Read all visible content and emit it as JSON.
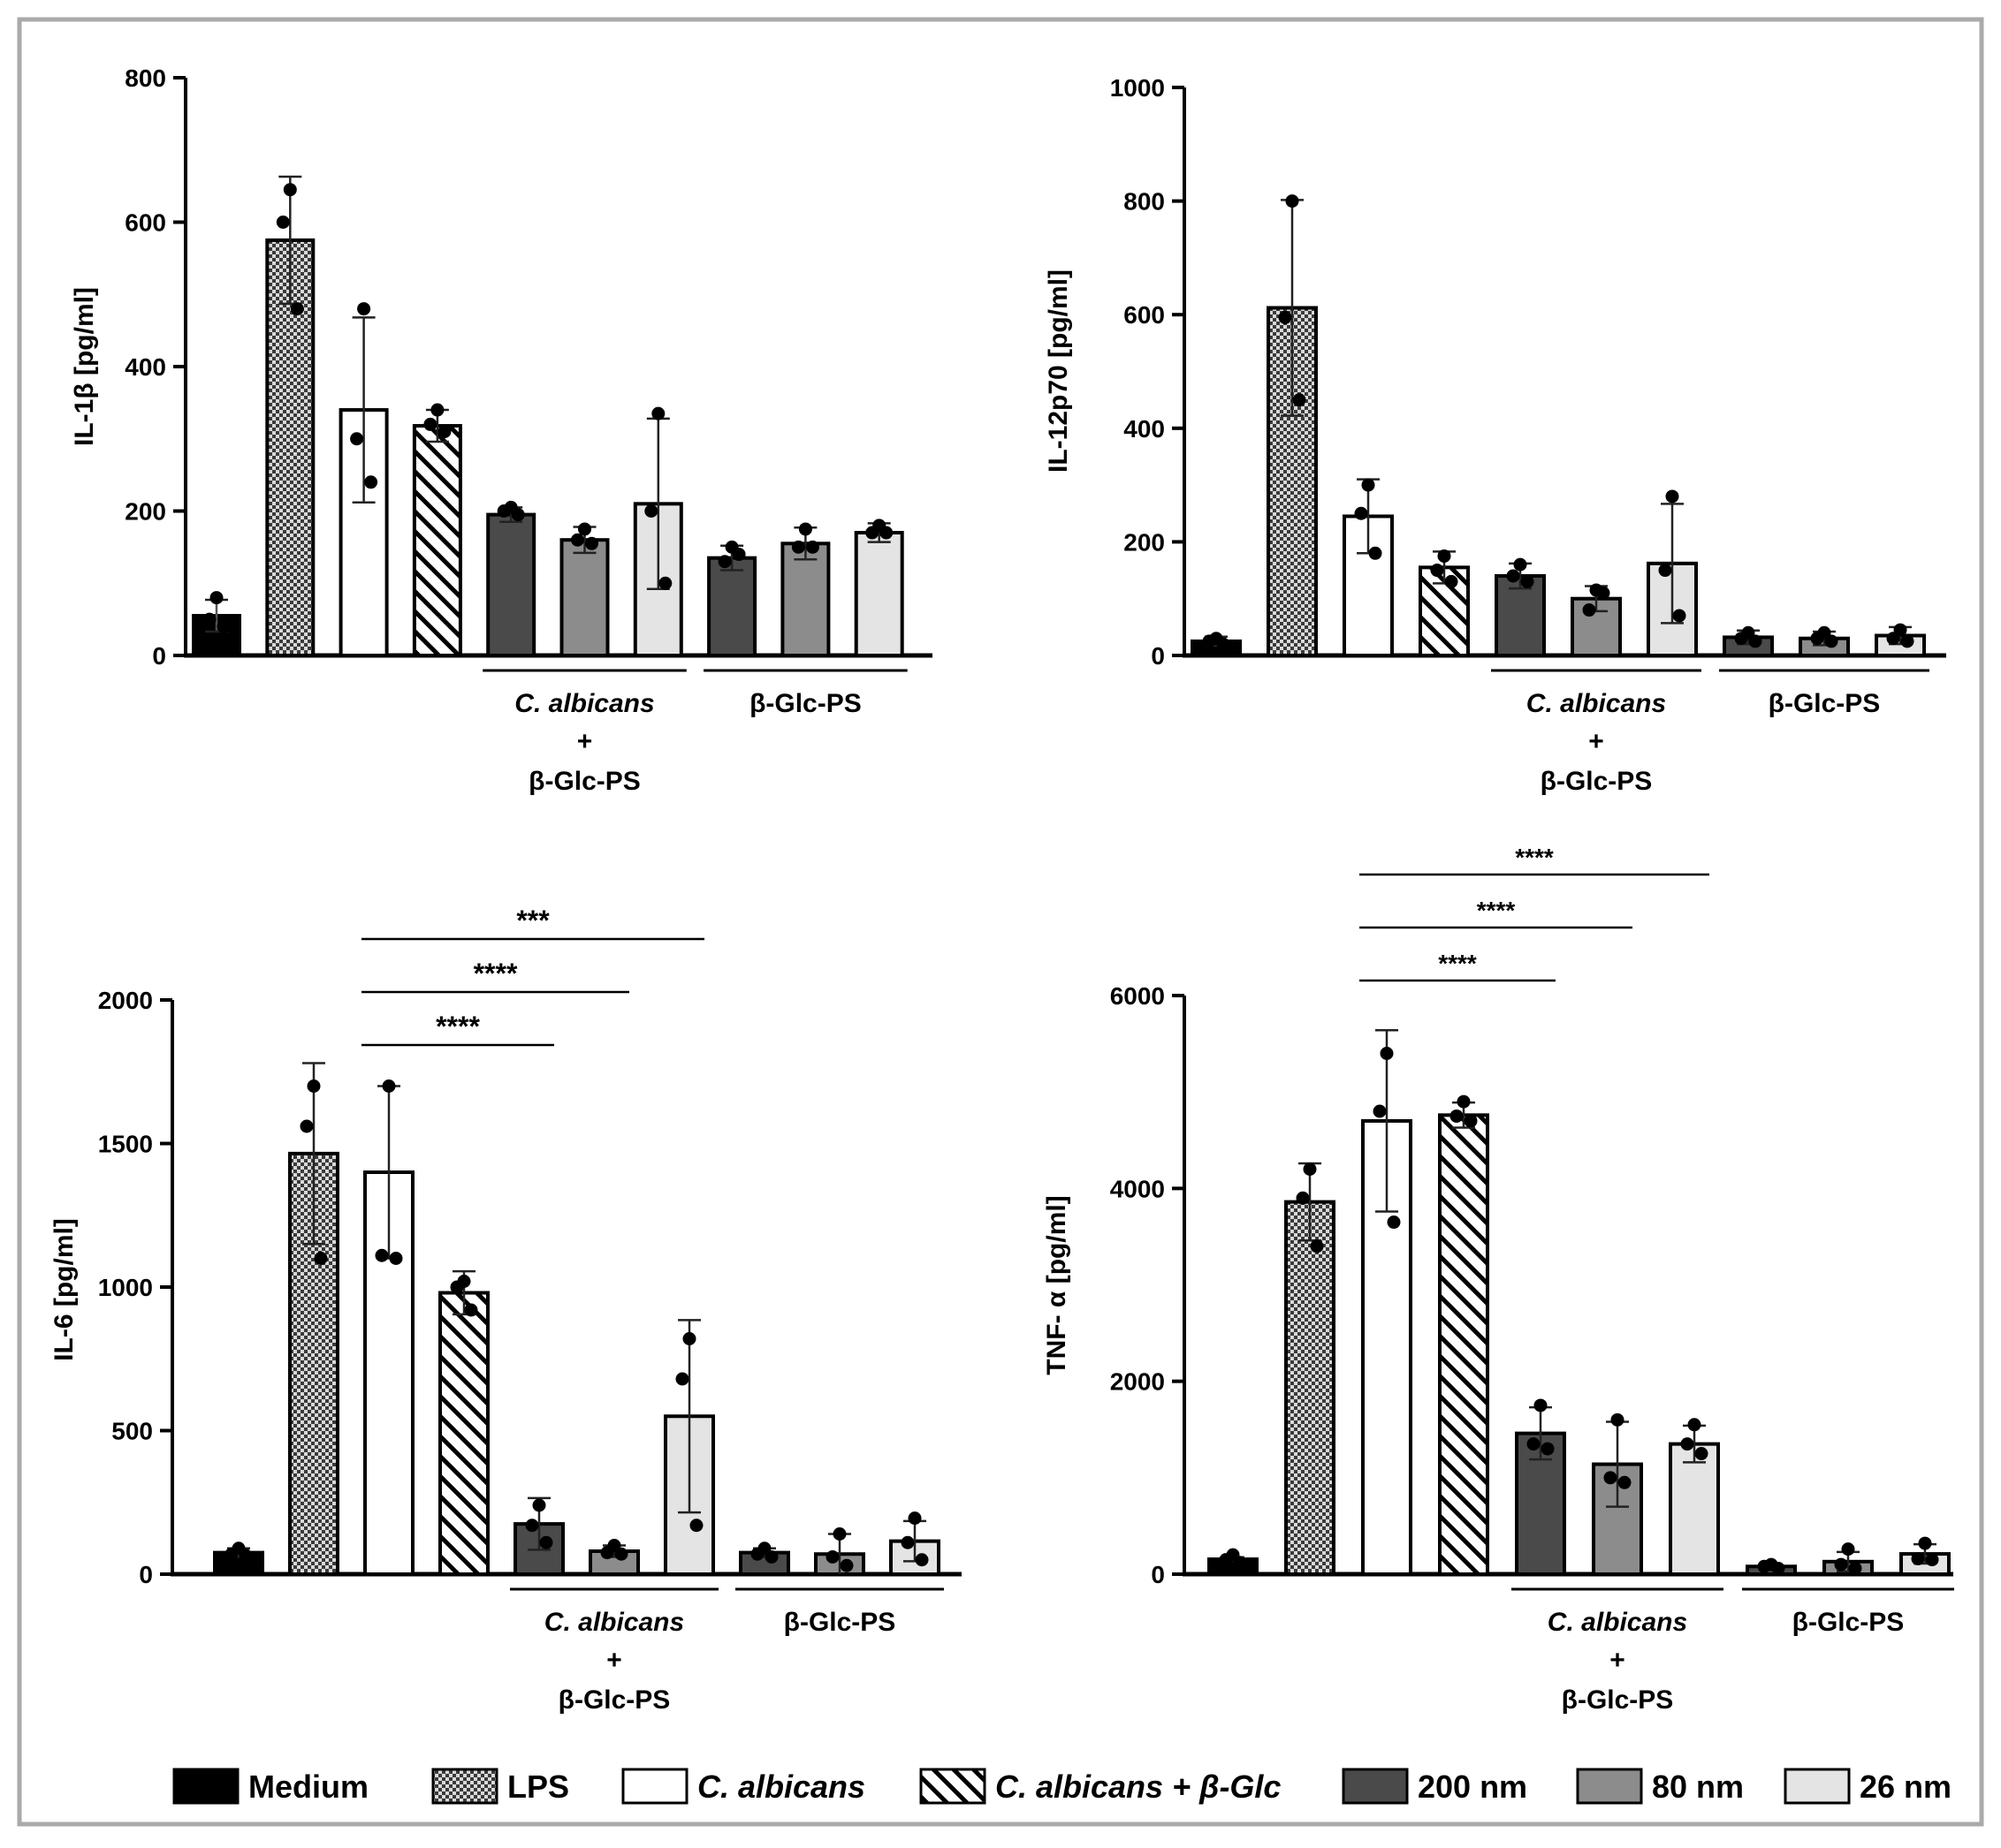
{
  "chart_data": [
    {
      "id": "il1b",
      "type": "bar",
      "ylabel": "IL-1β [pg/ml]",
      "ylim": [
        0,
        800
      ],
      "yticks": [
        0,
        200,
        400,
        600,
        800
      ],
      "categories": [
        "Medium",
        "LPS",
        "C. albicans",
        "C. albicans + β-Glc",
        "C. albicans + β-Glc-PS 200 nm",
        "C. albicans + β-Glc-PS 80 nm",
        "C. albicans + β-Glc-PS 26 nm",
        "β-Glc-PS 200 nm",
        "β-Glc-PS 80 nm",
        "β-Glc-PS 26 nm"
      ],
      "values": [
        55,
        575,
        340,
        318,
        195,
        160,
        210,
        135,
        155,
        170
      ],
      "errors": [
        22,
        88,
        128,
        22,
        10,
        18,
        118,
        17,
        22,
        13
      ],
      "points": [
        [
          80,
          50,
          40
        ],
        [
          645,
          600,
          480
        ],
        [
          480,
          300,
          240
        ],
        [
          340,
          320,
          310
        ],
        [
          205,
          200,
          195
        ],
        [
          175,
          160,
          155
        ],
        [
          335,
          200,
          100
        ],
        [
          150,
          130,
          140
        ],
        [
          175,
          150,
          150
        ],
        [
          180,
          170,
          170
        ]
      ],
      "group_labels": [
        {
          "text": "C. albicans",
          "italic": true
        },
        {
          "text": "+",
          "italic": false
        },
        {
          "text": "β-Glc-PS",
          "italic": false
        },
        {
          "text": "β-Glc-PS",
          "italic": false
        }
      ],
      "significance": []
    },
    {
      "id": "il12",
      "type": "bar",
      "ylabel": "IL-12p70 [pg/ml]",
      "ylim": [
        0,
        1000
      ],
      "yticks": [
        0,
        200,
        400,
        600,
        800,
        1000
      ],
      "categories": [
        "Medium",
        "LPS",
        "C. albicans",
        "C. albicans + β-Glc",
        "C. albicans + β-Glc-PS 200 nm",
        "C. albicans + β-Glc-PS 80 nm",
        "C. albicans + β-Glc-PS 26 nm",
        "β-Glc-PS 200 nm",
        "β-Glc-PS 80 nm",
        "β-Glc-PS 26 nm"
      ],
      "values": [
        25,
        612,
        245,
        155,
        140,
        100,
        162,
        32,
        30,
        35
      ],
      "errors": [
        8,
        190,
        65,
        28,
        22,
        22,
        105,
        12,
        12,
        15
      ],
      "points": [
        [
          30,
          25,
          20
        ],
        [
          800,
          595,
          450
        ],
        [
          300,
          250,
          180
        ],
        [
          175,
          150,
          130
        ],
        [
          160,
          140,
          130
        ],
        [
          115,
          80,
          110
        ],
        [
          280,
          150,
          70
        ],
        [
          40,
          30,
          25
        ],
        [
          40,
          30,
          25
        ],
        [
          45,
          30,
          25
        ]
      ],
      "group_labels": [
        {
          "text": "C. albicans",
          "italic": true
        },
        {
          "text": "+",
          "italic": false
        },
        {
          "text": "β-Glc-PS",
          "italic": false
        },
        {
          "text": "β-Glc-PS",
          "italic": false
        }
      ],
      "significance": []
    },
    {
      "id": "il6",
      "type": "bar",
      "ylabel": "IL-6 [pg/ml]",
      "ylim": [
        0,
        2000
      ],
      "yticks": [
        0,
        500,
        1000,
        1500,
        2000
      ],
      "categories": [
        "Medium",
        "LPS",
        "C. albicans",
        "C. albicans + β-Glc",
        "C. albicans + β-Glc-PS 200 nm",
        "C. albicans + β-Glc-PS 80 nm",
        "C. albicans + β-Glc-PS 26 nm",
        "β-Glc-PS 200 nm",
        "β-Glc-PS 80 nm",
        "β-Glc-PS 26 nm"
      ],
      "values": [
        75,
        1465,
        1400,
        980,
        175,
        80,
        550,
        75,
        70,
        115
      ],
      "errors": [
        15,
        315,
        300,
        75,
        90,
        20,
        335,
        15,
        70,
        70
      ],
      "points": [
        [
          90,
          70,
          65
        ],
        [
          1700,
          1560,
          1100
        ],
        [
          1700,
          1110,
          1100
        ],
        [
          1020,
          1000,
          920
        ],
        [
          240,
          170,
          110
        ],
        [
          100,
          75,
          70
        ],
        [
          820,
          680,
          170
        ],
        [
          90,
          70,
          60
        ],
        [
          140,
          60,
          30
        ],
        [
          195,
          110,
          50
        ]
      ],
      "group_labels": [
        {
          "text": "C. albicans",
          "italic": true
        },
        {
          "text": "+",
          "italic": false
        },
        {
          "text": "β-Glc-PS",
          "italic": false
        },
        {
          "text": "β-Glc-PS",
          "italic": false
        }
      ],
      "significance": [
        {
          "from": 2,
          "to": 4,
          "label": "****"
        },
        {
          "from": 2,
          "to": 5,
          "label": "****"
        },
        {
          "from": 2,
          "to": 6,
          "label": "***"
        }
      ]
    },
    {
      "id": "tnf",
      "type": "bar",
      "ylabel": "TNF- α [pg/ml]",
      "ylim": [
        0,
        6000
      ],
      "yticks": [
        0,
        2000,
        4000,
        6000
      ],
      "categories": [
        "Medium",
        "LPS",
        "C. albicans",
        "C. albicans + β-Glc",
        "C. albicans + β-Glc-PS 200 nm",
        "C. albicans + β-Glc-PS 80 nm",
        "C. albicans + β-Glc-PS 26 nm",
        "β-Glc-PS 200 nm",
        "β-Glc-PS 80 nm",
        "β-Glc-PS 26 nm"
      ],
      "values": [
        155,
        3860,
        4700,
        4760,
        1460,
        1140,
        1350,
        80,
        130,
        210
      ],
      "errors": [
        20,
        400,
        940,
        130,
        270,
        440,
        190,
        20,
        100,
        100
      ],
      "points": [
        [
          200,
          150,
          120
        ],
        [
          4200,
          3900,
          3400
        ],
        [
          5400,
          4800,
          3650
        ],
        [
          4900,
          4750,
          4700
        ],
        [
          1750,
          1350,
          1300
        ],
        [
          1600,
          1000,
          950
        ],
        [
          1550,
          1350,
          1250
        ],
        [
          100,
          80,
          60
        ],
        [
          260,
          100,
          60
        ],
        [
          320,
          160,
          150
        ]
      ],
      "group_labels": [
        {
          "text": "C. albicans",
          "italic": true
        },
        {
          "text": "+",
          "italic": false
        },
        {
          "text": "β-Glc-PS",
          "italic": false
        },
        {
          "text": "β-Glc-PS",
          "italic": false
        }
      ],
      "significance": [
        {
          "from": 2,
          "to": 4,
          "label": "****"
        },
        {
          "from": 2,
          "to": 5,
          "label": "****"
        },
        {
          "from": 2,
          "to": 6,
          "label": "****"
        }
      ]
    }
  ],
  "legend": [
    {
      "label": "Medium",
      "fill": "#000000",
      "pattern": "solid"
    },
    {
      "label": "LPS",
      "fill": "#c8c8c8",
      "pattern": "checker"
    },
    {
      "label": "C. albicans",
      "fill": "#ffffff",
      "pattern": "solid",
      "italic": true
    },
    {
      "label": "C. albicans + β-Glc",
      "fill": "#ffffff",
      "pattern": "hatch",
      "italic": true
    },
    {
      "label": "200 nm",
      "fill": "#4a4a4a",
      "pattern": "solid"
    },
    {
      "label": "80 nm",
      "fill": "#8c8c8c",
      "pattern": "solid"
    },
    {
      "label": "26 nm",
      "fill": "#e4e4e4",
      "pattern": "solid"
    }
  ],
  "colors": {
    "background": "#ffffff",
    "frame": "#aaaaaa",
    "ink": "#000000"
  }
}
